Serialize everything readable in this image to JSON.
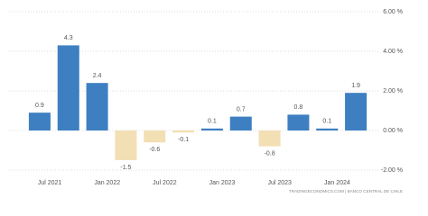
{
  "chart_data": {
    "type": "bar",
    "categories": [
      "Jul 2021",
      null,
      "Jan 2022",
      null,
      "Jul 2022",
      null,
      "Jan 2023",
      null,
      "Jul 2023",
      null,
      "Jan 2024",
      null
    ],
    "values": [
      0.9,
      4.3,
      2.4,
      -1.5,
      -0.6,
      -0.1,
      0.1,
      0.7,
      -0.8,
      0.8,
      0.1,
      1.9
    ],
    "color": "#3d7fc1",
    "negative_color": "#f3dfb4",
    "ylim": [
      -2,
      6
    ],
    "yticks": [
      {
        "value": -2,
        "label": "-2.00 %"
      },
      {
        "value": 0,
        "label": "0.00 %"
      },
      {
        "value": 2,
        "label": "2.00 %"
      },
      {
        "value": 4,
        "label": "4.00 %"
      },
      {
        "value": 6,
        "label": "6.00 %"
      }
    ],
    "grid": true,
    "source": "TRADINGECONOMICS.COM | BANCO CENTRAL DE CHILE"
  }
}
